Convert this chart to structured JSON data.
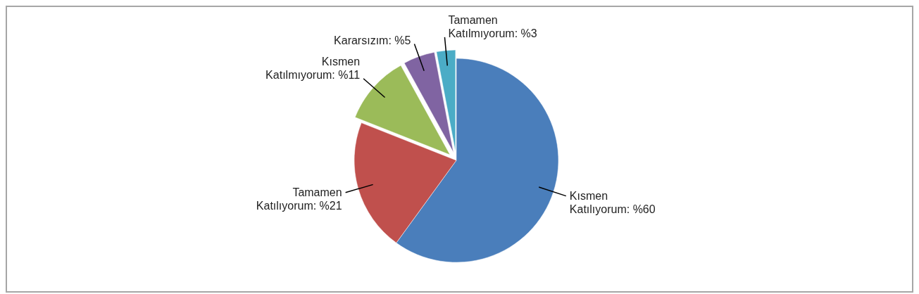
{
  "chart_data": {
    "type": "pie",
    "categories": [
      "Kısmen Katılıyorum",
      "Tamamen Katılıyorum",
      "Kısmen Katılmıyorum",
      "Kararsızım",
      "Tamamen Katılmıyorum"
    ],
    "values": [
      60,
      21,
      11,
      5,
      3
    ],
    "colors": [
      "#4a7ebb",
      "#c0504d",
      "#9bbb59",
      "#8064a2",
      "#4bacc6"
    ],
    "value_labels": [
      "%60",
      "%21",
      "%11",
      "%5",
      "%3"
    ]
  }
}
